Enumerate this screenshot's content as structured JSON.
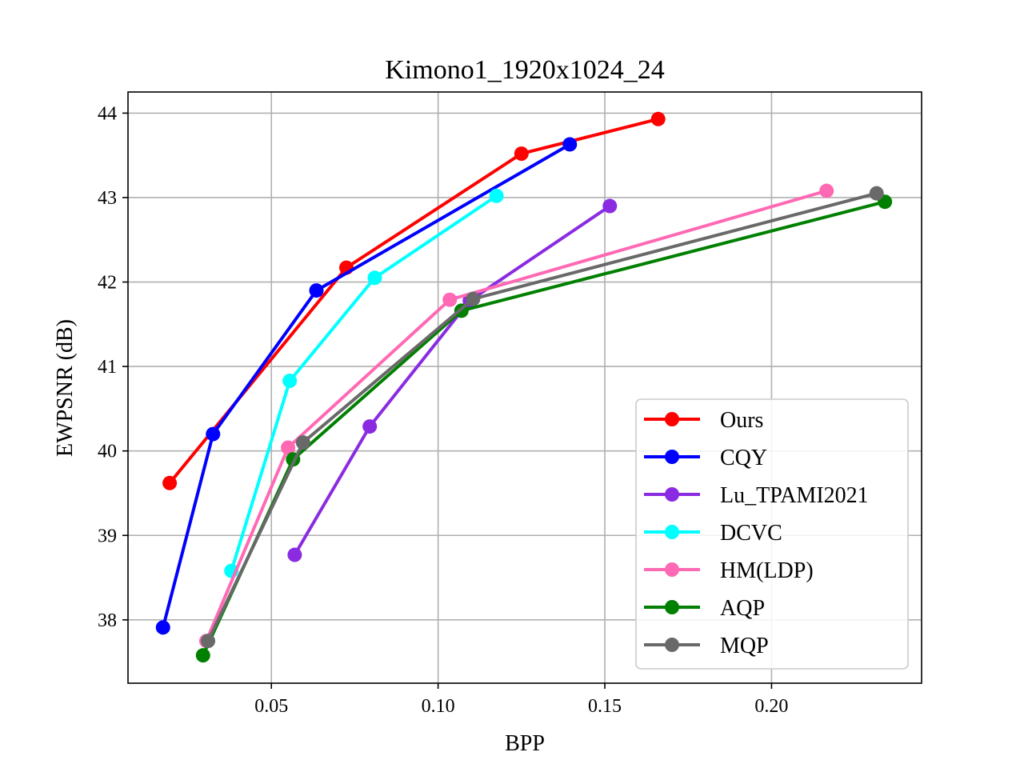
{
  "chart_data": {
    "type": "line",
    "title": "Kimono1_1920x1024_24",
    "xlabel": "BPP",
    "ylabel": "EWPSNR (dB)",
    "xlim": [
      0.007,
      0.245
    ],
    "ylim": [
      37.25,
      44.25
    ],
    "xticks": [
      0.05,
      0.1,
      0.15,
      0.2
    ],
    "xtick_labels": [
      "0.05",
      "0.10",
      "0.15",
      "0.20"
    ],
    "yticks": [
      38,
      39,
      40,
      41,
      42,
      43,
      44
    ],
    "ytick_labels": [
      "38",
      "39",
      "40",
      "41",
      "42",
      "43",
      "44"
    ],
    "grid": true,
    "legend_position": "bottom-right",
    "series": [
      {
        "name": "Ours",
        "color": "#ff0000",
        "x": [
          0.0195,
          0.0725,
          0.125,
          0.166
        ],
        "y": [
          39.62,
          42.17,
          43.52,
          43.93
        ]
      },
      {
        "name": "CQY",
        "color": "#0000ff",
        "x": [
          0.0175,
          0.0325,
          0.0635,
          0.1395
        ],
        "y": [
          37.91,
          40.2,
          41.9,
          43.63
        ]
      },
      {
        "name": "Lu_TPAMI2021",
        "color": "#8a2be2",
        "x": [
          0.057,
          0.0795,
          0.1095,
          0.1515
        ],
        "y": [
          38.77,
          40.29,
          41.78,
          42.9
        ]
      },
      {
        "name": "DCVC",
        "color": "#00ffff",
        "x": [
          0.038,
          0.0555,
          0.081,
          0.1175
        ],
        "y": [
          38.58,
          40.83,
          42.05,
          43.02
        ]
      },
      {
        "name": "HM(LDP)",
        "color": "#ff69b4",
        "x": [
          0.0305,
          0.055,
          0.1035,
          0.2165
        ],
        "y": [
          37.75,
          40.04,
          41.79,
          43.08
        ]
      },
      {
        "name": "AQP",
        "color": "#008000",
        "x": [
          0.0295,
          0.0565,
          0.107,
          0.234
        ],
        "y": [
          37.58,
          39.9,
          41.66,
          42.95
        ]
      },
      {
        "name": "MQP",
        "color": "#696969",
        "x": [
          0.031,
          0.0595,
          0.1105,
          0.2315
        ],
        "y": [
          37.75,
          40.1,
          41.8,
          43.05
        ]
      }
    ]
  }
}
